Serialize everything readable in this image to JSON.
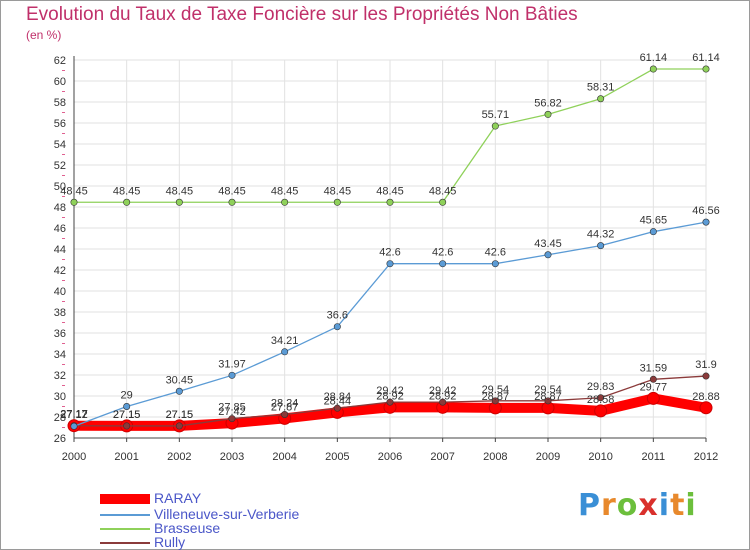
{
  "title": "Evolution du Taux de Taxe Foncière sur les Propriétés Non Bâties",
  "unit_label": "(en %)",
  "logo_text": "Proxiti",
  "chart_data": {
    "type": "line",
    "title": "Evolution du Taux de Taxe Foncière sur les Propriétés Non Bâties",
    "ylabel": "(en %)",
    "ylim": [
      26,
      62
    ],
    "ytick_step": 2,
    "grid": true,
    "legend_position": "bottom-left",
    "x": [
      "2000",
      "2001",
      "2002",
      "2003",
      "2004",
      "2005",
      "2006",
      "2007",
      "2008",
      "2009",
      "2010",
      "2011",
      "2012"
    ],
    "yticks": [
      "26",
      "28",
      "30",
      "32",
      "34",
      "36",
      "38",
      "40",
      "42",
      "44",
      "46",
      "48",
      "50",
      "52",
      "54",
      "56",
      "58",
      "60",
      "62"
    ],
    "series": [
      {
        "name": "RARAY",
        "color": "#ff0000",
        "values": [
          27.17,
          27.15,
          27.15,
          27.42,
          27.87,
          28.44,
          28.92,
          28.92,
          28.87,
          28.87,
          28.58,
          29.77,
          28.88
        ],
        "labels": [
          "27.17",
          "27.15",
          "27.15",
          "27.42",
          "27.87",
          "28.44",
          "28.92",
          "28.92",
          "28.87",
          "28.87",
          "28.58",
          "29.77",
          "28.88"
        ]
      },
      {
        "name": "Villeneuve-sur-Verberie",
        "color": "#5b9bd5",
        "values": [
          27.12,
          29,
          30.45,
          31.97,
          34.21,
          36.6,
          42.6,
          42.6,
          42.6,
          43.45,
          44.32,
          45.65,
          46.56
        ],
        "labels": [
          "27.12",
          "29",
          "30.45",
          "31.97",
          "34.21",
          "36.6",
          "42.6",
          "42.6",
          "42.6",
          "43.45",
          "44.32",
          "45.65",
          "46.56"
        ]
      },
      {
        "name": "Brasseuse",
        "color": "#8fd15a",
        "values": [
          48.45,
          48.45,
          48.45,
          48.45,
          48.45,
          48.45,
          48.45,
          48.45,
          55.71,
          56.82,
          58.31,
          61.14,
          61.14
        ],
        "labels": [
          "48.45",
          "48.45",
          "48.45",
          "48.45",
          "48.45",
          "48.45",
          "48.45",
          "48.45",
          "55.71",
          "56.82",
          "58.31",
          "61.14",
          "61.14"
        ]
      },
      {
        "name": "Rully",
        "color": "#8b3a3a",
        "values": [
          27.17,
          27.15,
          27.15,
          27.85,
          28.24,
          28.84,
          29.42,
          29.42,
          29.54,
          29.54,
          29.83,
          31.59,
          31.9
        ],
        "labels": [
          "27.17",
          "27.15",
          "27.15",
          "27.85",
          "28.24",
          "28.84",
          "29.42",
          "29.42",
          "29.54",
          "29.54",
          "29.83",
          "31.59",
          "31.9"
        ]
      }
    ]
  }
}
